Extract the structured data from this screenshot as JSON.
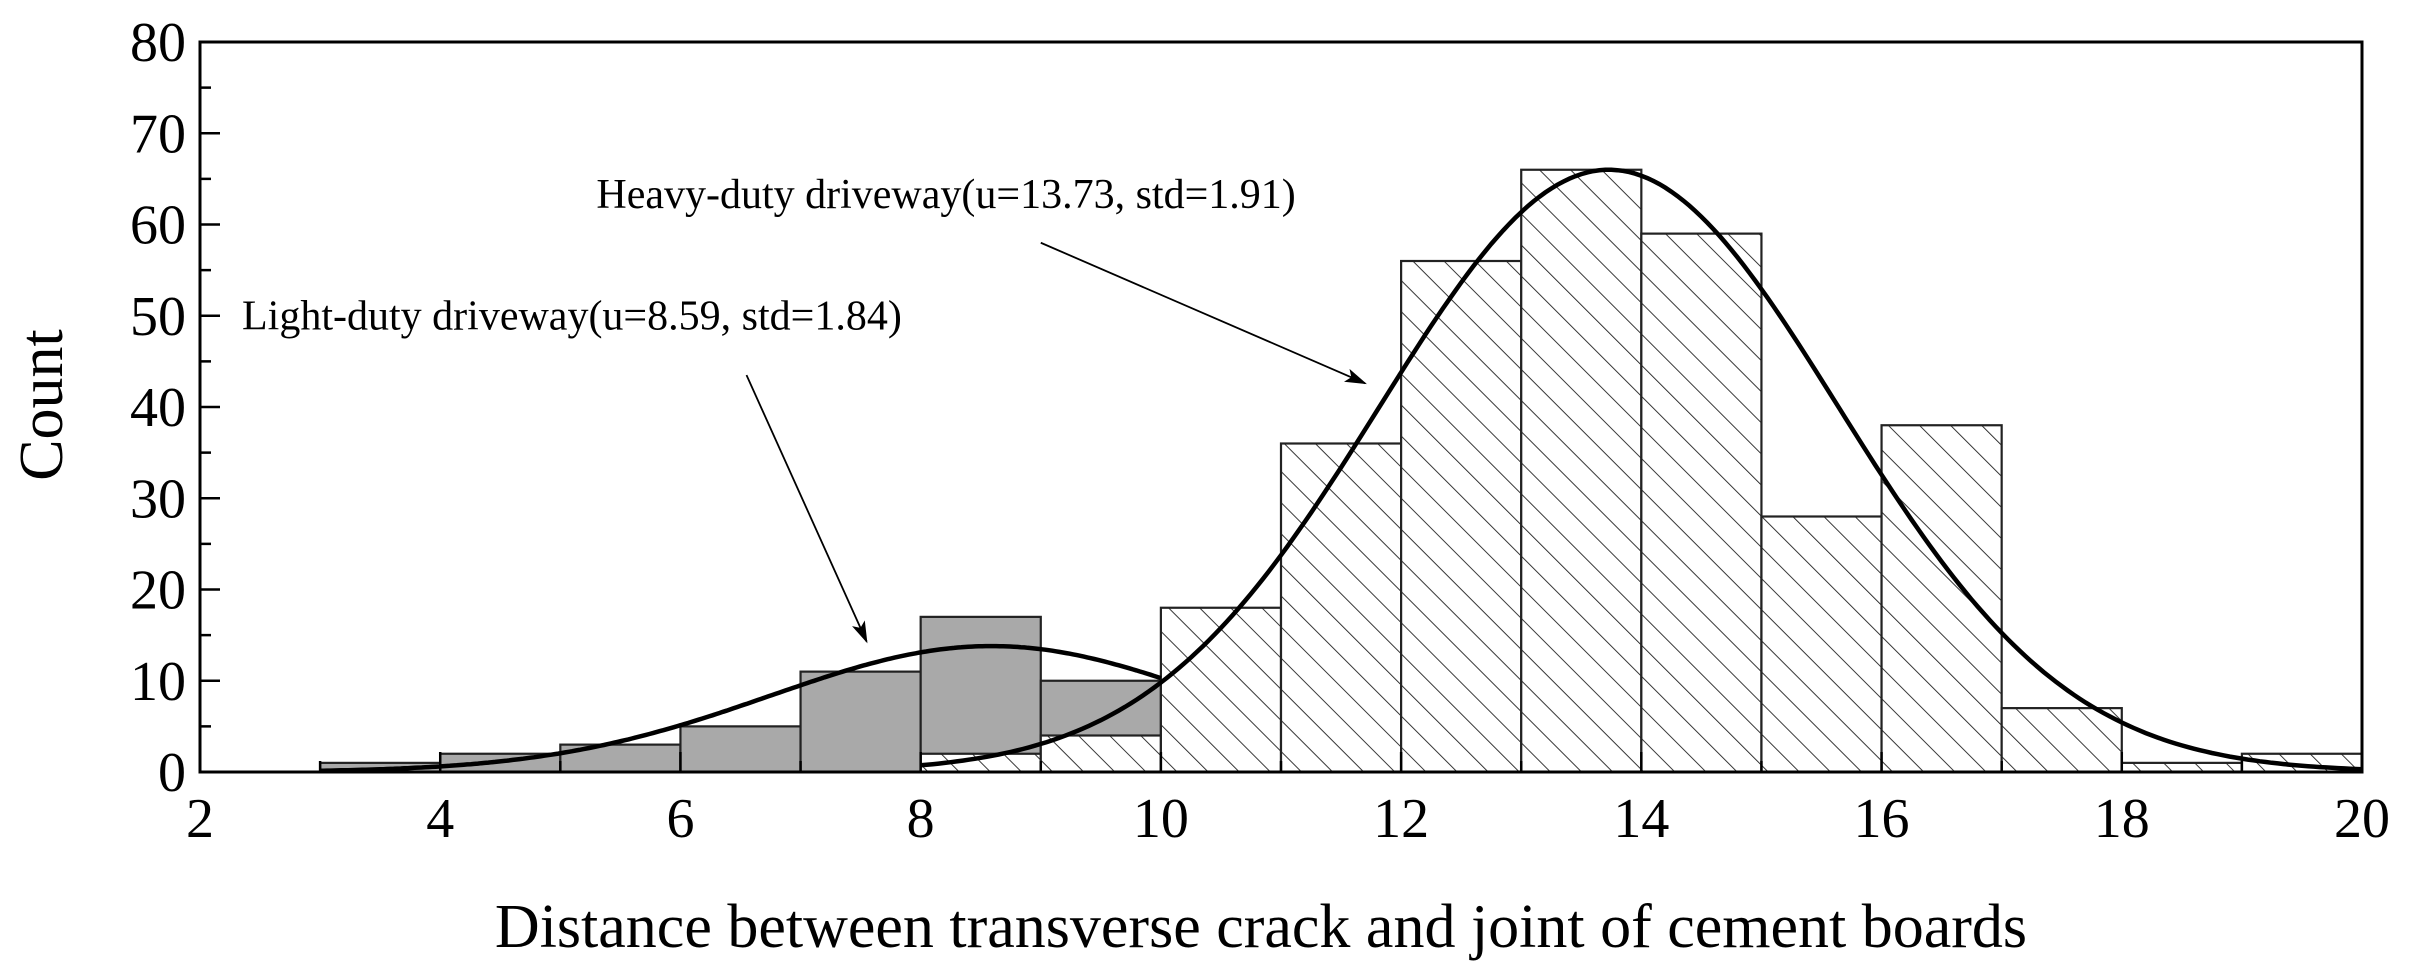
{
  "chart_data": {
    "type": "bar",
    "xlabel": "Distance between transverse crack and joint of cement boards",
    "ylabel": "Count",
    "xlim": [
      2,
      20
    ],
    "ylim": [
      0,
      80
    ],
    "x_ticks": [
      "2",
      "4",
      "6",
      "8",
      "10",
      "12",
      "14",
      "16",
      "18",
      "20"
    ],
    "y_ticks": [
      "0",
      "10",
      "20",
      "30",
      "40",
      "50",
      "60",
      "70",
      "80"
    ],
    "grid": false,
    "legend": "none",
    "series": [
      {
        "name": "Light-duty driveway",
        "style": "solid gray fill",
        "color": "#a9a9a9",
        "bins": [
          {
            "x0": 3,
            "x1": 4,
            "value": 1
          },
          {
            "x0": 4,
            "x1": 5,
            "value": 2
          },
          {
            "x0": 5,
            "x1": 6,
            "value": 3
          },
          {
            "x0": 6,
            "x1": 7,
            "value": 5
          },
          {
            "x0": 7,
            "x1": 8,
            "value": 11
          },
          {
            "x0": 8,
            "x1": 9,
            "value": 17
          },
          {
            "x0": 9,
            "x1": 10,
            "value": 10
          }
        ],
        "fit": {
          "type": "normal",
          "mean": 8.59,
          "std": 1.84,
          "peak": 13.8
        }
      },
      {
        "name": "Heavy-duty driveway",
        "style": "diagonal hatch",
        "color": "#ffffff",
        "bins": [
          {
            "x0": 8,
            "x1": 9,
            "value": 2
          },
          {
            "x0": 9,
            "x1": 10,
            "value": 4
          },
          {
            "x0": 10,
            "x1": 11,
            "value": 18
          },
          {
            "x0": 11,
            "x1": 12,
            "value": 36
          },
          {
            "x0": 12,
            "x1": 13,
            "value": 56
          },
          {
            "x0": 13,
            "x1": 14,
            "value": 66
          },
          {
            "x0": 14,
            "x1": 15,
            "value": 59
          },
          {
            "x0": 15,
            "x1": 16,
            "value": 28
          },
          {
            "x0": 16,
            "x1": 17,
            "value": 38
          },
          {
            "x0": 17,
            "x1": 18,
            "value": 7
          },
          {
            "x0": 18,
            "x1": 19,
            "value": 1
          },
          {
            "x0": 19,
            "x1": 20,
            "value": 2
          }
        ],
        "fit": {
          "type": "normal",
          "mean": 13.73,
          "std": 1.91,
          "peak": 66
        }
      }
    ],
    "annotations": [
      {
        "text": "Light-duty driveway(u=8.59, std=1.84)",
        "text_x": 2.35,
        "text_y": 48.5,
        "arrow_from": [
          6.55,
          43.5
        ],
        "arrow_to": [
          7.55,
          14.3
        ]
      },
      {
        "text": "Heavy-duty driveway(u=13.73, std=1.91)",
        "text_x": 5.3,
        "text_y": 61.8,
        "arrow_from": [
          9.0,
          58.0
        ],
        "arrow_to": [
          11.7,
          42.6
        ]
      }
    ]
  }
}
